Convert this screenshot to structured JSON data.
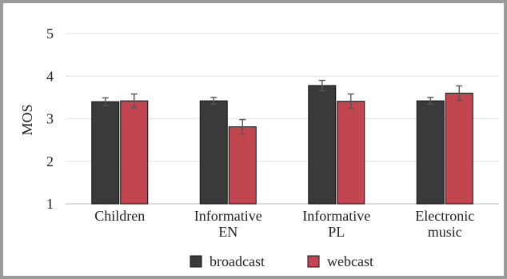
{
  "chart_data": {
    "type": "bar",
    "title": "",
    "xlabel": "",
    "ylabel": "MOS",
    "ylim": [
      1,
      5
    ],
    "yticks": [
      1,
      2,
      3,
      4,
      5
    ],
    "grid": true,
    "legend_position": "bottom",
    "categories": [
      [
        "Children"
      ],
      [
        "Informative",
        "EN"
      ],
      [
        "Informative",
        "PL"
      ],
      [
        "Electronic",
        "music"
      ]
    ],
    "series": [
      {
        "name": "broadcast",
        "color": "#3a3a3a",
        "values": [
          3.4,
          3.42,
          3.78,
          3.42
        ],
        "errors": [
          0.09,
          0.08,
          0.12,
          0.08
        ]
      },
      {
        "name": "webcast",
        "color": "#c1464f",
        "values": [
          3.42,
          2.81,
          3.41,
          3.6
        ],
        "errors": [
          0.16,
          0.17,
          0.17,
          0.17
        ]
      }
    ]
  }
}
